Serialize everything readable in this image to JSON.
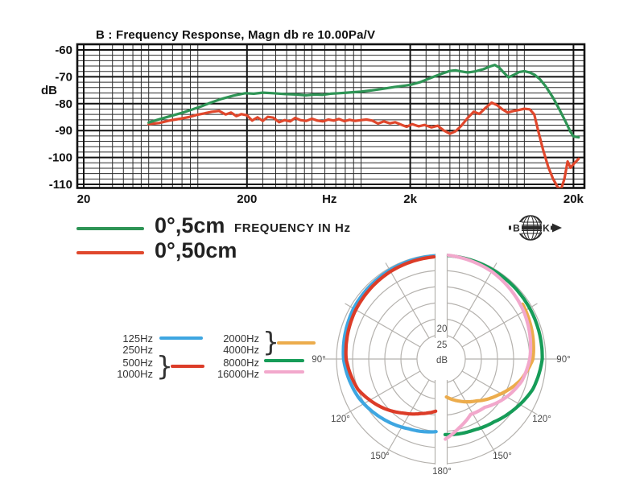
{
  "fr_legend": {
    "items": [
      {
        "label": "0°,5cm",
        "color": "#2E9455"
      },
      {
        "label": "0°,50cm",
        "color": "#E0472C"
      }
    ],
    "axis_unit_label": "FREQUENCY IN Hz"
  },
  "logo": {
    "left_letter": "B",
    "right_letter": "K"
  },
  "polar_legend": {
    "col1": [
      "125Hz",
      "250Hz",
      "500Hz",
      "1000Hz"
    ],
    "col2": [
      "2000Hz",
      "4000Hz",
      "8000Hz",
      "16000Hz"
    ],
    "brace": "}",
    "swatches": {
      "blue": "#3EA6E1",
      "red": "#DC3C28",
      "orange": "#ECAC4C",
      "green": "#169C58",
      "pink": "#F2A8CC"
    }
  },
  "chart_data": [
    {
      "type": "line",
      "id": "frequency_response",
      "title": "B : Frequency Response, Magn db re 10.00Pa/V",
      "xscale": "log",
      "xlabel": "FREQUENCY IN Hz",
      "ylabel": "dB",
      "xlim": [
        20,
        22000
      ],
      "ylim": [
        -112,
        -58
      ],
      "x_ticks": [
        {
          "label": "20",
          "f": 20
        },
        {
          "label": "200",
          "f": 200
        },
        {
          "label": "Hz",
          "f": 640
        },
        {
          "label": "2k",
          "f": 2000
        },
        {
          "label": "20k",
          "f": 20000
        }
      ],
      "y_ticks": [
        "-60",
        "-70",
        "-80",
        "-90",
        "-100",
        "-110"
      ],
      "grid": {
        "minor_db_step": 2,
        "major_db_step": 10
      },
      "series": [
        {
          "name": "0°,50cm",
          "color": "#E0472C",
          "points": [
            [
              50,
              -87.6
            ],
            [
              58,
              -87.2
            ],
            [
              68,
              -86.2
            ],
            [
              78,
              -85.6
            ],
            [
              88,
              -85.0
            ],
            [
              98,
              -84.2
            ],
            [
              110,
              -83.6
            ],
            [
              122,
              -83.0
            ],
            [
              135,
              -82.7
            ],
            [
              148,
              -84.0
            ],
            [
              160,
              -83.3
            ],
            [
              172,
              -84.6
            ],
            [
              185,
              -83.9
            ],
            [
              200,
              -84.3
            ],
            [
              215,
              -86.3
            ],
            [
              232,
              -85.1
            ],
            [
              250,
              -86.4
            ],
            [
              268,
              -84.9
            ],
            [
              290,
              -85.2
            ],
            [
              315,
              -86.9
            ],
            [
              340,
              -86.1
            ],
            [
              368,
              -86.6
            ],
            [
              395,
              -85.3
            ],
            [
              425,
              -86.1
            ],
            [
              460,
              -86.4
            ],
            [
              500,
              -85.6
            ],
            [
              540,
              -86.3
            ],
            [
              585,
              -86.6
            ],
            [
              630,
              -85.9
            ],
            [
              680,
              -86.3
            ],
            [
              730,
              -85.7
            ],
            [
              790,
              -86.5
            ],
            [
              850,
              -86.0
            ],
            [
              920,
              -86.4
            ],
            [
              1000,
              -86.1
            ],
            [
              1080,
              -85.9
            ],
            [
              1170,
              -86.3
            ],
            [
              1270,
              -87.4
            ],
            [
              1380,
              -86.6
            ],
            [
              1500,
              -87.3
            ],
            [
              1620,
              -86.9
            ],
            [
              1760,
              -87.8
            ],
            [
              1900,
              -88.6
            ],
            [
              2060,
              -87.6
            ],
            [
              2250,
              -88.4
            ],
            [
              2450,
              -87.9
            ],
            [
              2700,
              -88.8
            ],
            [
              2950,
              -88.2
            ],
            [
              3200,
              -89.9
            ],
            [
              3500,
              -91.2
            ],
            [
              3800,
              -90.2
            ],
            [
              4100,
              -88.3
            ],
            [
              4500,
              -85.3
            ],
            [
              4900,
              -83.0
            ],
            [
              5300,
              -83.8
            ],
            [
              5800,
              -81.5
            ],
            [
              6300,
              -79.6
            ],
            [
              6800,
              -80.5
            ],
            [
              7300,
              -82.0
            ],
            [
              7900,
              -83.3
            ],
            [
              8600,
              -82.7
            ],
            [
              9300,
              -82.3
            ],
            [
              10000,
              -81.9
            ],
            [
              10800,
              -82.1
            ],
            [
              11500,
              -84.0
            ],
            [
              12200,
              -90.5
            ],
            [
              13000,
              -97.0
            ],
            [
              14000,
              -103.5
            ],
            [
              15000,
              -108.0
            ],
            [
              16000,
              -111.0
            ],
            [
              16800,
              -111.8
            ],
            [
              17600,
              -108.0
            ],
            [
              18400,
              -101.5
            ],
            [
              19200,
              -103.8
            ],
            [
              20000,
              -102.5
            ],
            [
              21500,
              -100.5
            ]
          ]
        },
        {
          "name": "0°,5cm",
          "color": "#2E9455",
          "points": [
            [
              50,
              -87.0
            ],
            [
              58,
              -85.8
            ],
            [
              68,
              -84.6
            ],
            [
              80,
              -83.4
            ],
            [
              92,
              -82.2
            ],
            [
              105,
              -81.0
            ],
            [
              120,
              -79.6
            ],
            [
              140,
              -78.2
            ],
            [
              165,
              -77.0
            ],
            [
              195,
              -76.1
            ],
            [
              220,
              -76.3
            ],
            [
              250,
              -75.9
            ],
            [
              290,
              -76.1
            ],
            [
              340,
              -76.4
            ],
            [
              400,
              -76.6
            ],
            [
              460,
              -76.9
            ],
            [
              520,
              -76.6
            ],
            [
              580,
              -76.7
            ],
            [
              650,
              -76.3
            ],
            [
              730,
              -76.1
            ],
            [
              820,
              -75.9
            ],
            [
              920,
              -75.7
            ],
            [
              1000,
              -75.5
            ],
            [
              1150,
              -75.1
            ],
            [
              1350,
              -74.5
            ],
            [
              1600,
              -73.8
            ],
            [
              1850,
              -73.3
            ],
            [
              2000,
              -73.0
            ],
            [
              2300,
              -72.0
            ],
            [
              2700,
              -70.3
            ],
            [
              3100,
              -68.9
            ],
            [
              3500,
              -67.8
            ],
            [
              3800,
              -67.6
            ],
            [
              4100,
              -68.0
            ],
            [
              4500,
              -68.4
            ],
            [
              5000,
              -68.0
            ],
            [
              5600,
              -67.2
            ],
            [
              6200,
              -66.1
            ],
            [
              6600,
              -65.6
            ],
            [
              7000,
              -66.5
            ],
            [
              7500,
              -68.5
            ],
            [
              8000,
              -70.2
            ],
            [
              8600,
              -69.3
            ],
            [
              9300,
              -68.2
            ],
            [
              10000,
              -67.9
            ],
            [
              10800,
              -68.4
            ],
            [
              11600,
              -69.3
            ],
            [
              12500,
              -71.0
            ],
            [
              13500,
              -73.5
            ],
            [
              15000,
              -77.8
            ],
            [
              16500,
              -82.5
            ],
            [
              18000,
              -87.0
            ],
            [
              19200,
              -90.5
            ],
            [
              20000,
              -92.2
            ],
            [
              21500,
              -92.5
            ]
          ]
        }
      ]
    },
    {
      "type": "polar",
      "id": "directivity",
      "rings_db": [
        0,
        5,
        10,
        15,
        20,
        25
      ],
      "ring_labels": [
        "20",
        "25"
      ],
      "center_label": "dB",
      "angle_labels": [
        "90°",
        "120°",
        "150°",
        "180°"
      ],
      "series": [
        {
          "name": "125Hz / 250Hz",
          "color": "#3EA6E1",
          "side": "left",
          "points_deg_db": [
            [
              4,
              0.4
            ],
            [
              30,
              0.6
            ],
            [
              60,
              1.1
            ],
            [
              90,
              2.2
            ],
            [
              115,
              4.2
            ],
            [
              135,
              6.5
            ],
            [
              155,
              8.6
            ],
            [
              176,
              9.9
            ]
          ]
        },
        {
          "name": "500Hz / 1000Hz",
          "color": "#DC3C28",
          "side": "left",
          "points_deg_db": [
            [
              4,
              0.7
            ],
            [
              30,
              1.1
            ],
            [
              60,
              1.9
            ],
            [
              90,
              3.0
            ],
            [
              110,
              5.0
            ],
            [
              128,
              8.5
            ],
            [
              145,
              12.0
            ],
            [
              160,
              14.5
            ],
            [
              174,
              16.2
            ]
          ]
        },
        {
          "name": "2000Hz / 4000Hz",
          "color": "#ECAC4C",
          "side": "right",
          "points_deg_db": [
            [
              56,
              2.0
            ],
            [
              90,
              4.0
            ],
            [
              105,
              7.0
            ],
            [
              122,
              11.5
            ],
            [
              140,
              15.5
            ],
            [
              155,
              18.0
            ],
            [
              172,
              20.6
            ]
          ]
        },
        {
          "name": "8000Hz",
          "color": "#169C58",
          "side": "right",
          "points_deg_db": [
            [
              4,
              0.3
            ],
            [
              30,
              0.5
            ],
            [
              60,
              0.8
            ],
            [
              90,
              1.1
            ],
            [
              108,
              2.5
            ],
            [
              125,
              5.0
            ],
            [
              140,
              7.0
            ],
            [
              155,
              8.2
            ],
            [
              177,
              9.0
            ]
          ]
        },
        {
          "name": "16000Hz",
          "color": "#F2A8CC",
          "side": "right",
          "points_deg_db": [
            [
              4,
              0.2
            ],
            [
              30,
              1.1
            ],
            [
              60,
              2.9
            ],
            [
              90,
              5.0
            ],
            [
              105,
              6.5
            ],
            [
              120,
              9.0
            ],
            [
              138,
              12.3
            ],
            [
              152,
              13.0
            ],
            [
              165,
              10.5
            ],
            [
              177,
              7.6
            ]
          ]
        }
      ]
    }
  ]
}
